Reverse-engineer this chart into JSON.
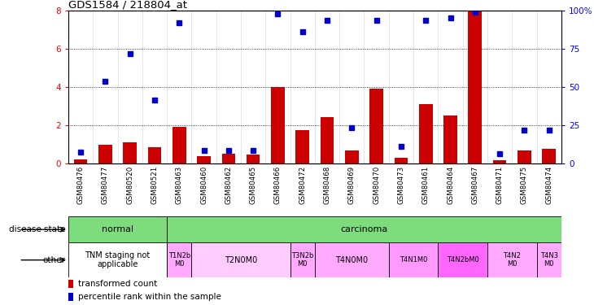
{
  "title": "GDS1584 / 218804_at",
  "samples": [
    "GSM80476",
    "GSM80477",
    "GSM80520",
    "GSM80521",
    "GSM80463",
    "GSM80460",
    "GSM80462",
    "GSM80465",
    "GSM80466",
    "GSM80472",
    "GSM80468",
    "GSM80469",
    "GSM80470",
    "GSM80473",
    "GSM80461",
    "GSM80464",
    "GSM80467",
    "GSM80471",
    "GSM80475",
    "GSM80474"
  ],
  "transformed_count": [
    0.2,
    0.95,
    1.1,
    0.85,
    1.9,
    0.35,
    0.5,
    0.45,
    4.0,
    1.75,
    2.4,
    0.65,
    3.9,
    0.3,
    3.1,
    2.5,
    8.0,
    0.15,
    0.65,
    0.75
  ],
  "percentile_rank_scaled": [
    0.6,
    4.3,
    5.75,
    3.3,
    7.35,
    0.65,
    0.65,
    0.65,
    7.85,
    6.9,
    7.5,
    1.85,
    7.5,
    0.9,
    7.5,
    7.6,
    7.9,
    0.5,
    1.75,
    1.75
  ],
  "ylim": [
    0,
    8
  ],
  "yticks": [
    0,
    2,
    4,
    6,
    8
  ],
  "y2ticks": [
    0,
    25,
    50,
    75,
    100
  ],
  "bar_color": "#cc0000",
  "dot_color": "#0000cc",
  "tnm_groups": [
    {
      "label": "TNM staging not\napplicable",
      "start": 0,
      "end": 3,
      "color": "#ffffff"
    },
    {
      "label": "T1N2b\nM0",
      "start": 4,
      "end": 4,
      "color": "#ffaaff"
    },
    {
      "label": "T2N0M0",
      "start": 5,
      "end": 8,
      "color": "#ffccff"
    },
    {
      "label": "T3N2b\nM0",
      "start": 9,
      "end": 9,
      "color": "#ffaaff"
    },
    {
      "label": "T4N0M0",
      "start": 10,
      "end": 12,
      "color": "#ffaaff"
    },
    {
      "label": "T4N1M0",
      "start": 13,
      "end": 14,
      "color": "#ff99ff"
    },
    {
      "label": "T4N2bM0",
      "start": 15,
      "end": 16,
      "color": "#ff66ff"
    },
    {
      "label": "T4N2\nM0",
      "start": 17,
      "end": 18,
      "color": "#ffaaff"
    },
    {
      "label": "T4N3\nM0",
      "start": 19,
      "end": 19,
      "color": "#ffaaff"
    }
  ]
}
